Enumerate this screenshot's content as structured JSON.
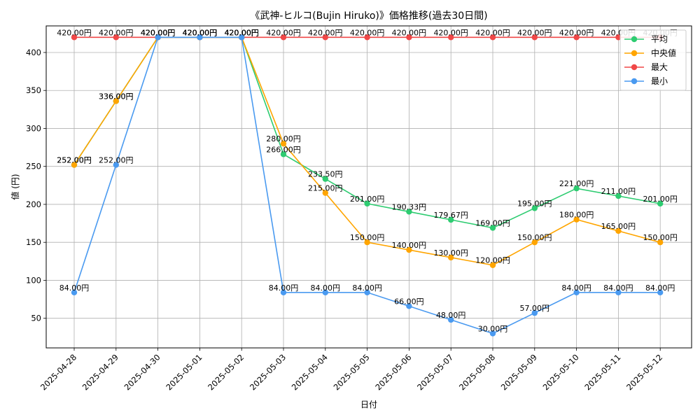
{
  "chart_data": {
    "type": "line",
    "title": "《武神-ヒルコ(Bujin Hiruko)》価格推移(過去30日間)",
    "xlabel": "日付",
    "ylabel": "値 (円)",
    "categories": [
      "2025-04-28",
      "2025-04-29",
      "2025-04-30",
      "2025-05-01",
      "2025-05-02",
      "2025-05-03",
      "2025-05-04",
      "2025-05-05",
      "2025-05-06",
      "2025-05-07",
      "2025-05-08",
      "2025-05-09",
      "2025-05-10",
      "2025-05-11",
      "2025-05-12"
    ],
    "ylim": [
      11,
      435
    ],
    "yticks": [
      50,
      100,
      150,
      200,
      250,
      300,
      350,
      400
    ],
    "grid": true,
    "legend_position": "top-right",
    "series": [
      {
        "name": "平均",
        "color": "#2ecc71",
        "values": [
          252,
          336,
          420,
          420,
          420,
          266,
          233.5,
          201,
          190.33,
          179.67,
          169,
          195,
          221,
          211,
          201
        ],
        "labels": [
          "252.00円",
          "336.00円",
          "420.00円",
          "420.00円",
          "420.00円",
          "266.00円",
          "233.50円",
          "201.00円",
          "190.33円",
          "179.67円",
          "169.00円",
          "195.00円",
          "221.00円",
          "211.00円",
          "201.00円"
        ]
      },
      {
        "name": "中央値",
        "color": "#ffa500",
        "values": [
          252,
          336,
          420,
          420,
          420,
          280,
          215,
          150,
          140,
          130,
          120,
          150,
          180,
          165,
          150
        ],
        "labels": [
          "252.00円",
          "336.00円",
          "420.00円",
          "420.00円",
          "420.00円",
          "280.00円",
          "215.00円",
          "150.00円",
          "140.00円",
          "130.00円",
          "120.00円",
          "150.00円",
          "180.00円",
          "165.00円",
          "150.00円"
        ]
      },
      {
        "name": "最大",
        "color": "#f04848",
        "values": [
          420,
          420,
          420,
          420,
          420,
          420,
          420,
          420,
          420,
          420,
          420,
          420,
          420,
          420,
          420
        ],
        "labels": [
          "420.00円",
          "420.00円",
          "420.00円",
          "420.00円",
          "420.00円",
          "420.00円",
          "420.00円",
          "420.00円",
          "420.00円",
          "420.00円",
          "420.00円",
          "420.00円",
          "420.00円",
          "420.00円",
          "420.00円"
        ]
      },
      {
        "name": "最小",
        "color": "#4a9af0",
        "values": [
          84,
          252,
          420,
          420,
          420,
          84,
          84,
          84,
          66,
          48,
          30,
          57,
          84,
          84,
          84
        ],
        "labels": [
          "84.00円",
          "252.00円",
          "420.00円",
          "420.00円",
          "420.00円",
          "84.00円",
          "84.00円",
          "84.00円",
          "66.00円",
          "48.00円",
          "30.00円",
          "57.00円",
          "84.00円",
          "84.00円",
          "84.00円"
        ]
      }
    ]
  }
}
